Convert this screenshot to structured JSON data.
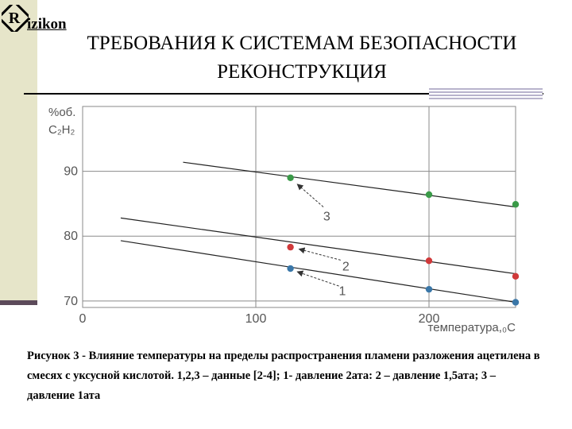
{
  "logo": {
    "mark": "R",
    "text": "izikon"
  },
  "title_line1": "ТРЕБОВАНИЯ К СИСТЕМАМ БЕЗОПАСНОСТИ",
  "title_line2": "РЕКОНСТРУКЦИЯ",
  "caption": "Рисунок 3 - Влияние температуры на пределы распространения пламени разложения ацетилена в смесях с уксусной кислотой. 1,2,3 – данные [2-4]; 1- давление 2ата: 2 – давление 1,5ата; 3 – давление 1ата",
  "chart_data": {
    "type": "scatter",
    "ylabel_line1": "%об.",
    "ylabel_line2": "C₂H₂",
    "xlabel": "температура,₀С",
    "xlim": [
      0,
      250
    ],
    "ylim": [
      69,
      100
    ],
    "xticks": [
      {
        "value": 0,
        "label": "0"
      },
      {
        "value": 100,
        "label": "100"
      },
      {
        "value": 200,
        "label": "200"
      }
    ],
    "yticks": [
      {
        "value": 70,
        "label": "70"
      },
      {
        "value": 80,
        "label": "80"
      },
      {
        "value": 90,
        "label": "90"
      }
    ],
    "grid": true,
    "series": [
      {
        "name": "1",
        "color": "#3a77a8",
        "x": [
          120,
          200,
          250
        ],
        "y": [
          75,
          71.8,
          69.8
        ],
        "trend": [
          [
            22,
            79.3
          ],
          [
            250,
            69.8
          ]
        ],
        "label_at": [
          150,
          71.5
        ],
        "arrow_from": [
          148,
          72.3
        ],
        "arrow_to": [
          124,
          74.5
        ]
      },
      {
        "name": "2",
        "color": "#d0393a",
        "x": [
          120,
          200,
          250
        ],
        "y": [
          78.3,
          76.2,
          73.8
        ],
        "trend": [
          [
            22,
            82.8
          ],
          [
            250,
            74.2
          ]
        ],
        "label_at": [
          152,
          75.3
        ],
        "arrow_from": [
          149,
          76.3
        ],
        "arrow_to": [
          125,
          78
        ]
      },
      {
        "name": "3",
        "color": "#3a9a48",
        "x": [
          120,
          200,
          250
        ],
        "y": [
          89,
          86.4,
          84.9
        ],
        "trend": [
          [
            58,
            91.4
          ],
          [
            250,
            84.5
          ]
        ],
        "label_at": [
          141,
          83
        ],
        "arrow_from": [
          139,
          84.5
        ],
        "arrow_to": [
          124,
          88
        ]
      }
    ]
  }
}
